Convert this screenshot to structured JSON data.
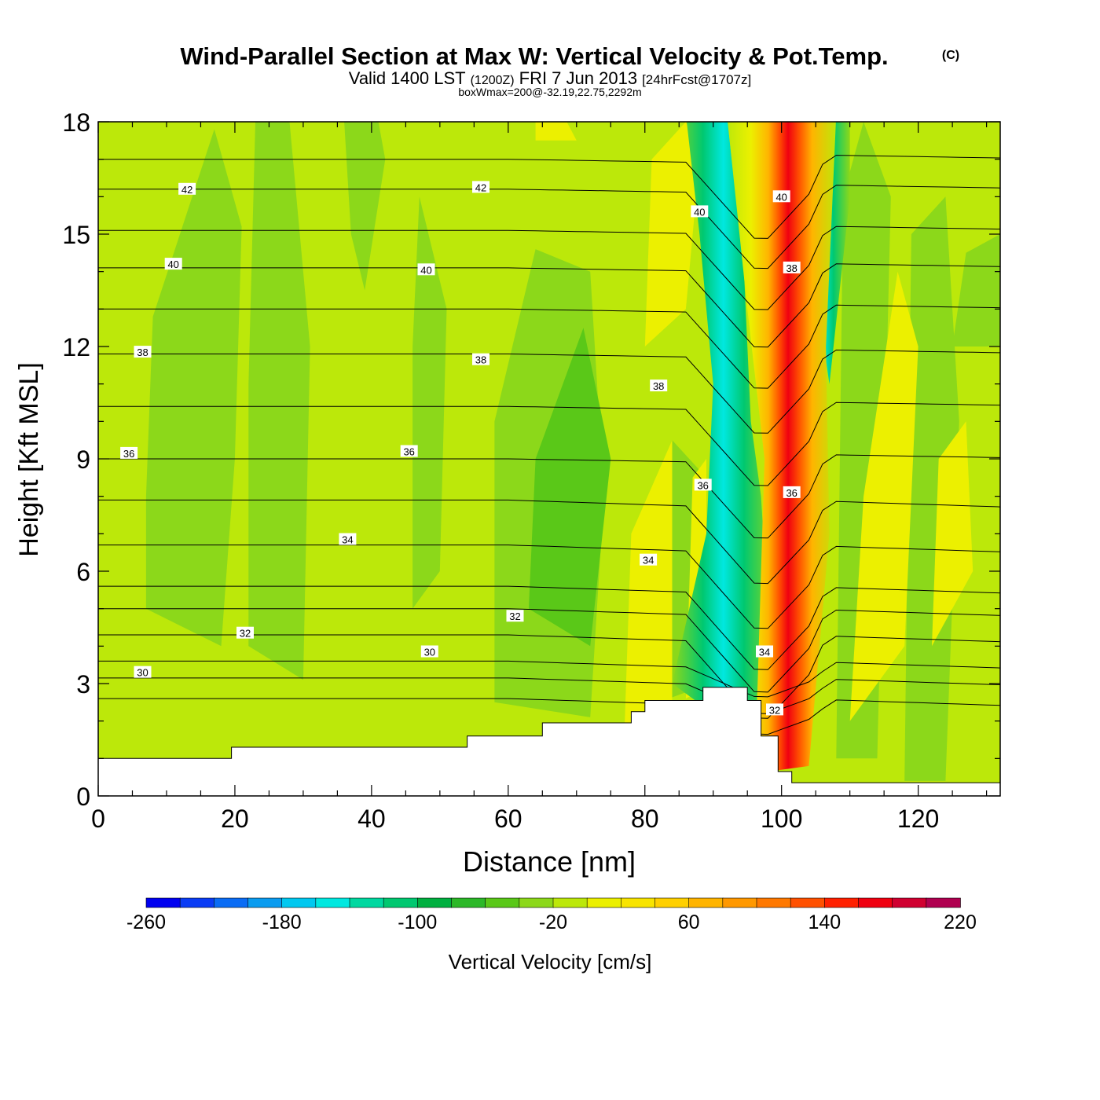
{
  "chart_data": {
    "type": "filled-contour-cross-section",
    "title": {
      "main": "Wind-Parallel Section at Max W: Vertical Velocity & Pot.Temp.",
      "copyright": "(C)",
      "valid_prefix": "Valid 1400 LST",
      "valid_utc": "(1200Z)",
      "valid_date": "FRI 7 Jun 2013",
      "forecast": "[24hrFcst@1707z]",
      "box_info": "boxWmax=200@-32.19,22.75,2292m"
    },
    "xlabel": "Distance [nm]",
    "ylabel": "Height [Kft MSL]",
    "xlim": [
      0,
      132
    ],
    "ylim": [
      0,
      18
    ],
    "xticks": [
      "0",
      "20",
      "40",
      "60",
      "80",
      "100",
      "120"
    ],
    "yticks": [
      "0",
      "3",
      "6",
      "9",
      "12",
      "15",
      "18"
    ],
    "colorbar": {
      "label": "Vertical Velocity [cm/s]",
      "tick_labels": [
        "-260",
        "-180",
        "-100",
        "-20",
        "60",
        "140",
        "220"
      ],
      "colors": [
        "#0000f0",
        "#0a3cf5",
        "#0a6cf5",
        "#0a9cf0",
        "#00c8f0",
        "#00e8e0",
        "#00d8a0",
        "#00c870",
        "#00b040",
        "#2cb828",
        "#5ac818",
        "#8cd81a",
        "#bce80a",
        "#ecf000",
        "#f8e400",
        "#ffd000",
        "#ffb400",
        "#ff9800",
        "#ff7800",
        "#ff5000",
        "#ff2000",
        "#f00010",
        "#d00030",
        "#b00050"
      ]
    },
    "velocity_field_description": "Mostly weak ascent/descent (-40 to +20 cm/s) with a strong updraft core near 100 nm (max about 200 cm/s) flanked by downdrafts near 92 and 107 nm",
    "updraft_max_cm_s": 200,
    "potential_temperature_contour_labels": [
      {
        "text": "42",
        "x": 13,
        "y": 16.2
      },
      {
        "text": "42",
        "x": 56,
        "y": 16.25
      },
      {
        "text": "40",
        "x": 11,
        "y": 14.2
      },
      {
        "text": "40",
        "x": 48,
        "y": 14.05
      },
      {
        "text": "40",
        "x": 88,
        "y": 15.6
      },
      {
        "text": "40",
        "x": 100,
        "y": 16
      },
      {
        "text": "38",
        "x": 6.5,
        "y": 11.85
      },
      {
        "text": "38",
        "x": 56,
        "y": 11.65
      },
      {
        "text": "38",
        "x": 82,
        "y": 10.95
      },
      {
        "text": "38",
        "x": 101.5,
        "y": 14.1
      },
      {
        "text": "36",
        "x": 4.5,
        "y": 9.15
      },
      {
        "text": "36",
        "x": 45.5,
        "y": 9.2
      },
      {
        "text": "36",
        "x": 88.5,
        "y": 8.3
      },
      {
        "text": "36",
        "x": 101.5,
        "y": 8.1
      },
      {
        "text": "34",
        "x": 36.5,
        "y": 6.85
      },
      {
        "text": "34",
        "x": 80.5,
        "y": 6.3
      },
      {
        "text": "34",
        "x": 97.5,
        "y": 3.85
      },
      {
        "text": "32",
        "x": 21.5,
        "y": 4.35
      },
      {
        "text": "32",
        "x": 61,
        "y": 4.8
      },
      {
        "text": "32",
        "x": 99,
        "y": 2.3
      },
      {
        "text": "30",
        "x": 6.5,
        "y": 3.3
      },
      {
        "text": "30",
        "x": 48.5,
        "y": 3.85
      }
    ],
    "terrain_kft": [
      {
        "x": 0,
        "h": 1.0
      },
      {
        "x": 19.5,
        "h": 1.0
      },
      {
        "x": 19.5,
        "h": 1.3
      },
      {
        "x": 54,
        "h": 1.3
      },
      {
        "x": 54,
        "h": 1.6
      },
      {
        "x": 65,
        "h": 1.6
      },
      {
        "x": 65,
        "h": 1.95
      },
      {
        "x": 78,
        "h": 1.95
      },
      {
        "x": 78,
        "h": 2.25
      },
      {
        "x": 80,
        "h": 2.25
      },
      {
        "x": 80,
        "h": 2.55
      },
      {
        "x": 88.5,
        "h": 2.55
      },
      {
        "x": 88.5,
        "h": 2.9
      },
      {
        "x": 95,
        "h": 2.9
      },
      {
        "x": 95,
        "h": 2.55
      },
      {
        "x": 97,
        "h": 2.55
      },
      {
        "x": 97,
        "h": 1.6
      },
      {
        "x": 99.5,
        "h": 1.6
      },
      {
        "x": 99.5,
        "h": 0.65
      },
      {
        "x": 101.5,
        "h": 0.65
      },
      {
        "x": 101.5,
        "h": 0.35
      },
      {
        "x": 132,
        "h": 0.35
      }
    ]
  }
}
